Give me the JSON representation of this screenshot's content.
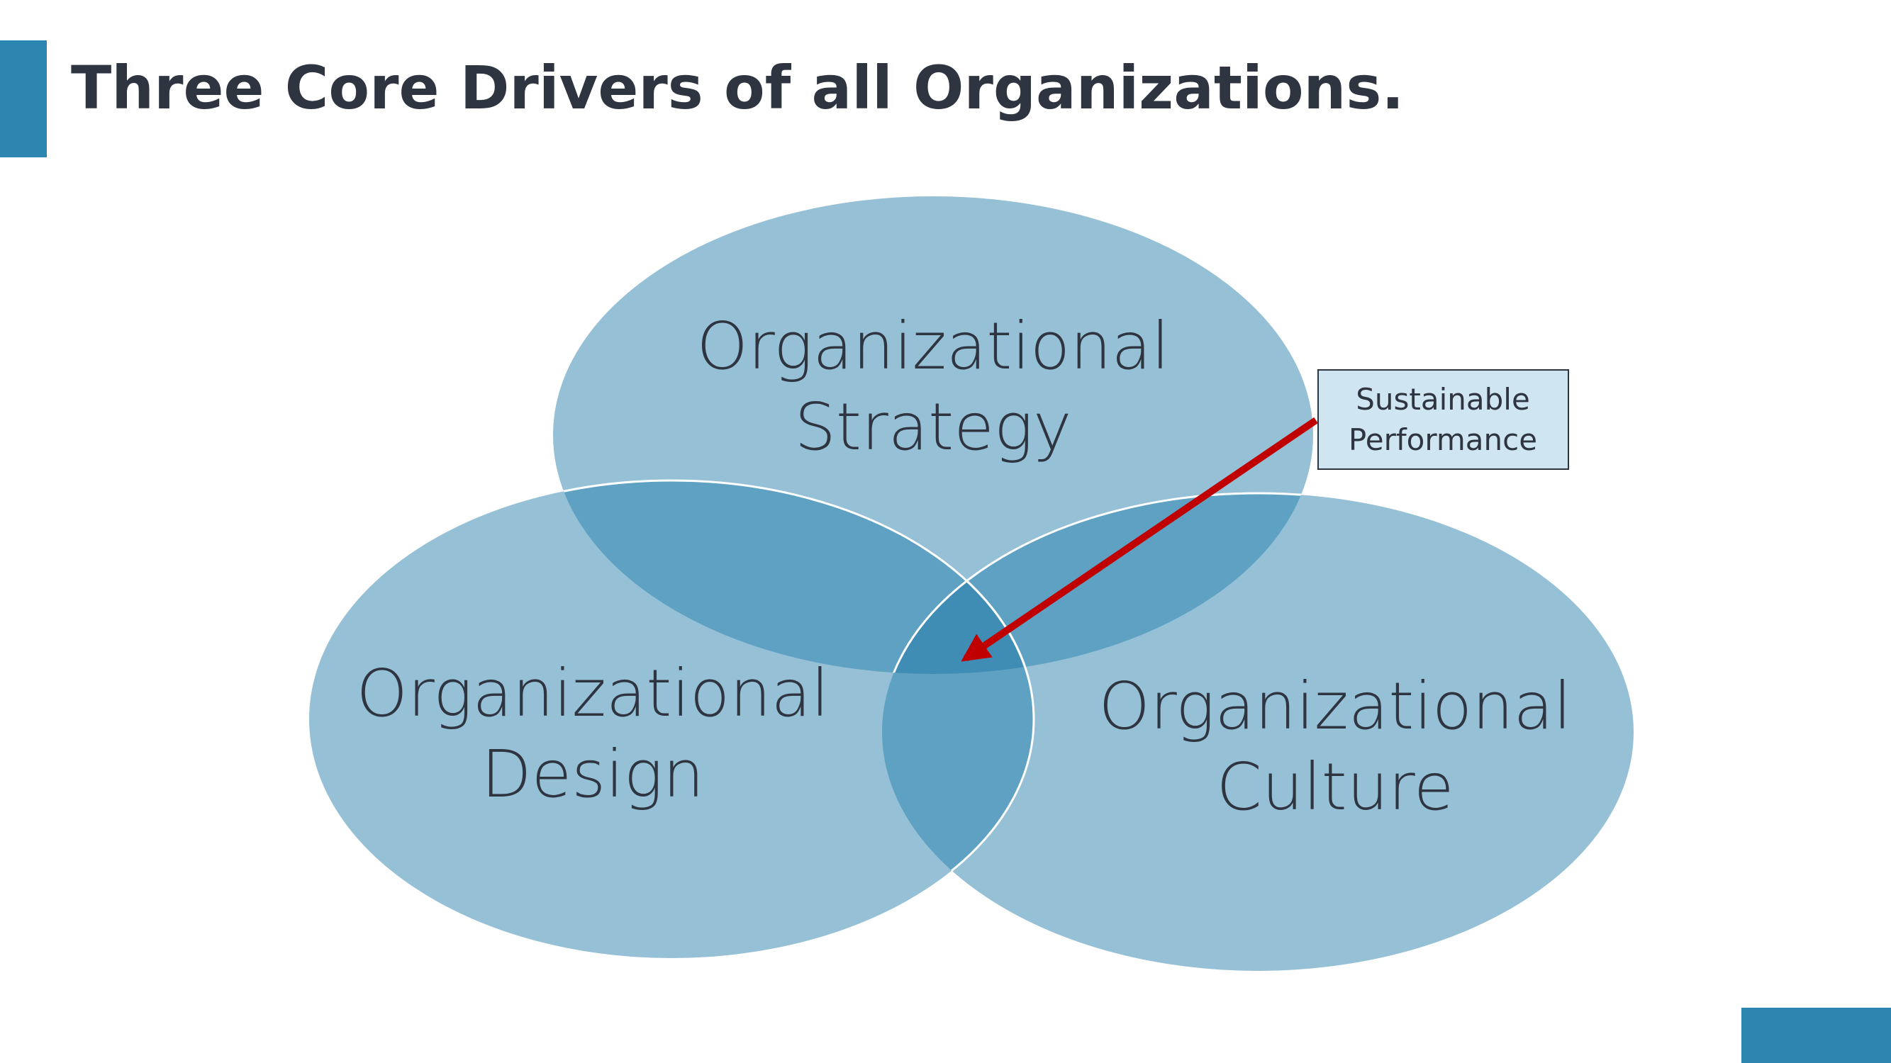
{
  "slide": {
    "title": "Three Core Drivers of all Organizations."
  },
  "venn": {
    "circles": [
      {
        "id": "strategy",
        "line1": "Organizational",
        "line2": "Strategy"
      },
      {
        "id": "design",
        "line1": "Organizational",
        "line2": "Design"
      },
      {
        "id": "culture",
        "line1": "Organizational",
        "line2": "Culture"
      }
    ],
    "callout": {
      "line1": "Sustainable",
      "line2": "Performance"
    }
  },
  "colors": {
    "accent": "#2d86b0",
    "circle_fill": "#95c0d6",
    "overlap_fill": "#5fa1c2",
    "center_fill": "#3f8db4",
    "arrow": "#c00000",
    "callout_fill": "#cfe6f2",
    "text": "#2f3540"
  }
}
